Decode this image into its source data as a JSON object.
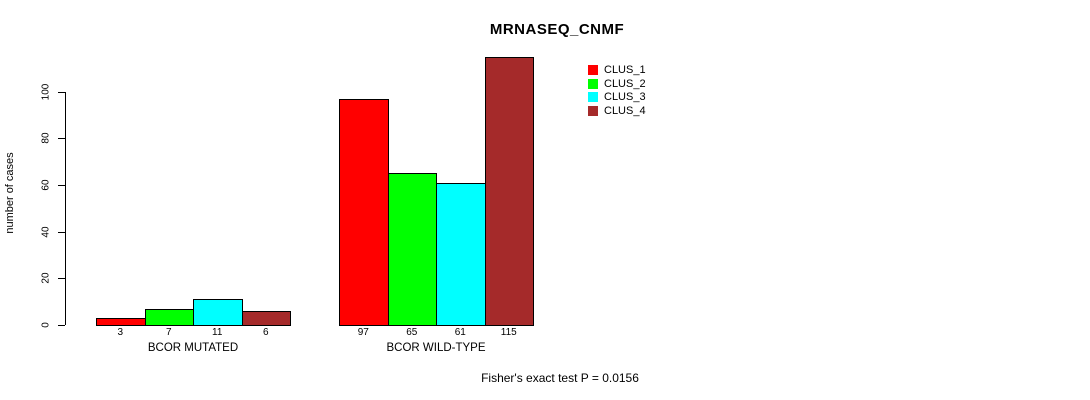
{
  "chart_data": {
    "type": "bar",
    "title": "MRNASEQ_CNMF",
    "xlabel": "",
    "ylabel": "number of cases",
    "categories": [
      "BCOR MUTATED",
      "BCOR WILD-TYPE"
    ],
    "series": [
      {
        "name": "CLUS_1",
        "color": "#FF0000",
        "values": [
          3,
          97
        ]
      },
      {
        "name": "CLUS_2",
        "color": "#00FF00",
        "values": [
          7,
          65
        ]
      },
      {
        "name": "CLUS_3",
        "color": "#00FFFF",
        "values": [
          11,
          61
        ]
      },
      {
        "name": "CLUS_4",
        "color": "#A52A2A",
        "values": [
          6,
          115
        ]
      }
    ],
    "groups": [
      {
        "label": "BCOR MUTATED",
        "values": [
          3,
          7,
          11,
          6
        ]
      },
      {
        "label": "BCOR WILD-TYPE",
        "values": [
          97,
          65,
          61,
          115
        ]
      }
    ],
    "bar_value_labels": [
      [
        "3",
        "7",
        "11",
        "6"
      ],
      [
        "97",
        "65",
        "61",
        "115"
      ]
    ],
    "y_ticks": [
      0,
      20,
      40,
      60,
      80,
      100
    ],
    "ylim": [
      0,
      115
    ],
    "grid": false,
    "legend_position": "top-right",
    "legend_entries": [
      "CLUS_1",
      "CLUS_2",
      "CLUS_3",
      "CLUS_4"
    ],
    "annotation": "Fisher's exact test P = 0.0156",
    "colors": {
      "background": "#FFFFFF",
      "axis": "#000000",
      "text": "#000000",
      "bar_border": "#000000"
    }
  }
}
